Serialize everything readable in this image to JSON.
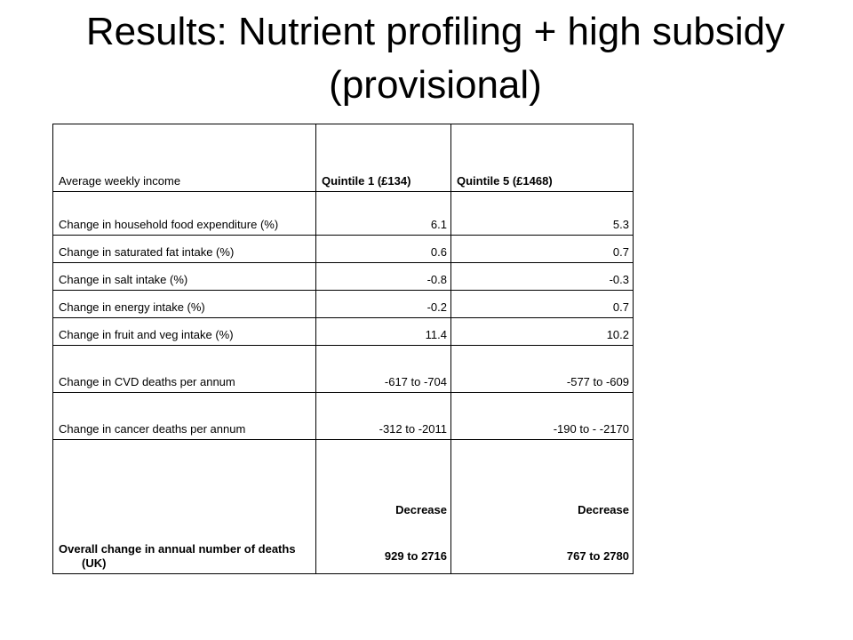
{
  "title": "Results: Nutrient profiling + high subsidy (provisional)",
  "table": {
    "header": {
      "row_label": "Average weekly income",
      "col1": "Quintile 1 (£134)",
      "col2": "Quintile 5 (£1468)"
    },
    "rows": [
      {
        "label": "Change in household food expenditure (%)",
        "q1": "6.1",
        "q5": "5.3"
      },
      {
        "label": "Change in saturated fat intake (%)",
        "q1": "0.6",
        "q5": "0.7"
      },
      {
        "label": "Change in salt intake (%)",
        "q1": "-0.8",
        "q5": "-0.3"
      },
      {
        "label": "Change in energy intake (%)",
        "q1": "-0.2",
        "q5": "0.7"
      },
      {
        "label": "Change in fruit and veg intake (%)",
        "q1": "11.4",
        "q5": "10.2"
      },
      {
        "label": "Change in CVD deaths per annum",
        "q1": "-617 to -704",
        "q5": "-577 to -609"
      },
      {
        "label": "Change in cancer deaths per annum",
        "q1": "-312 to -2011",
        "q5": "-190 to - -2170"
      }
    ],
    "overall": {
      "label": "Overall change in annual number of deaths (UK)",
      "q1_direction": "Decrease",
      "q1_range": "929 to 2716",
      "q5_direction": "Decrease",
      "q5_range": "767 to 2780"
    }
  }
}
